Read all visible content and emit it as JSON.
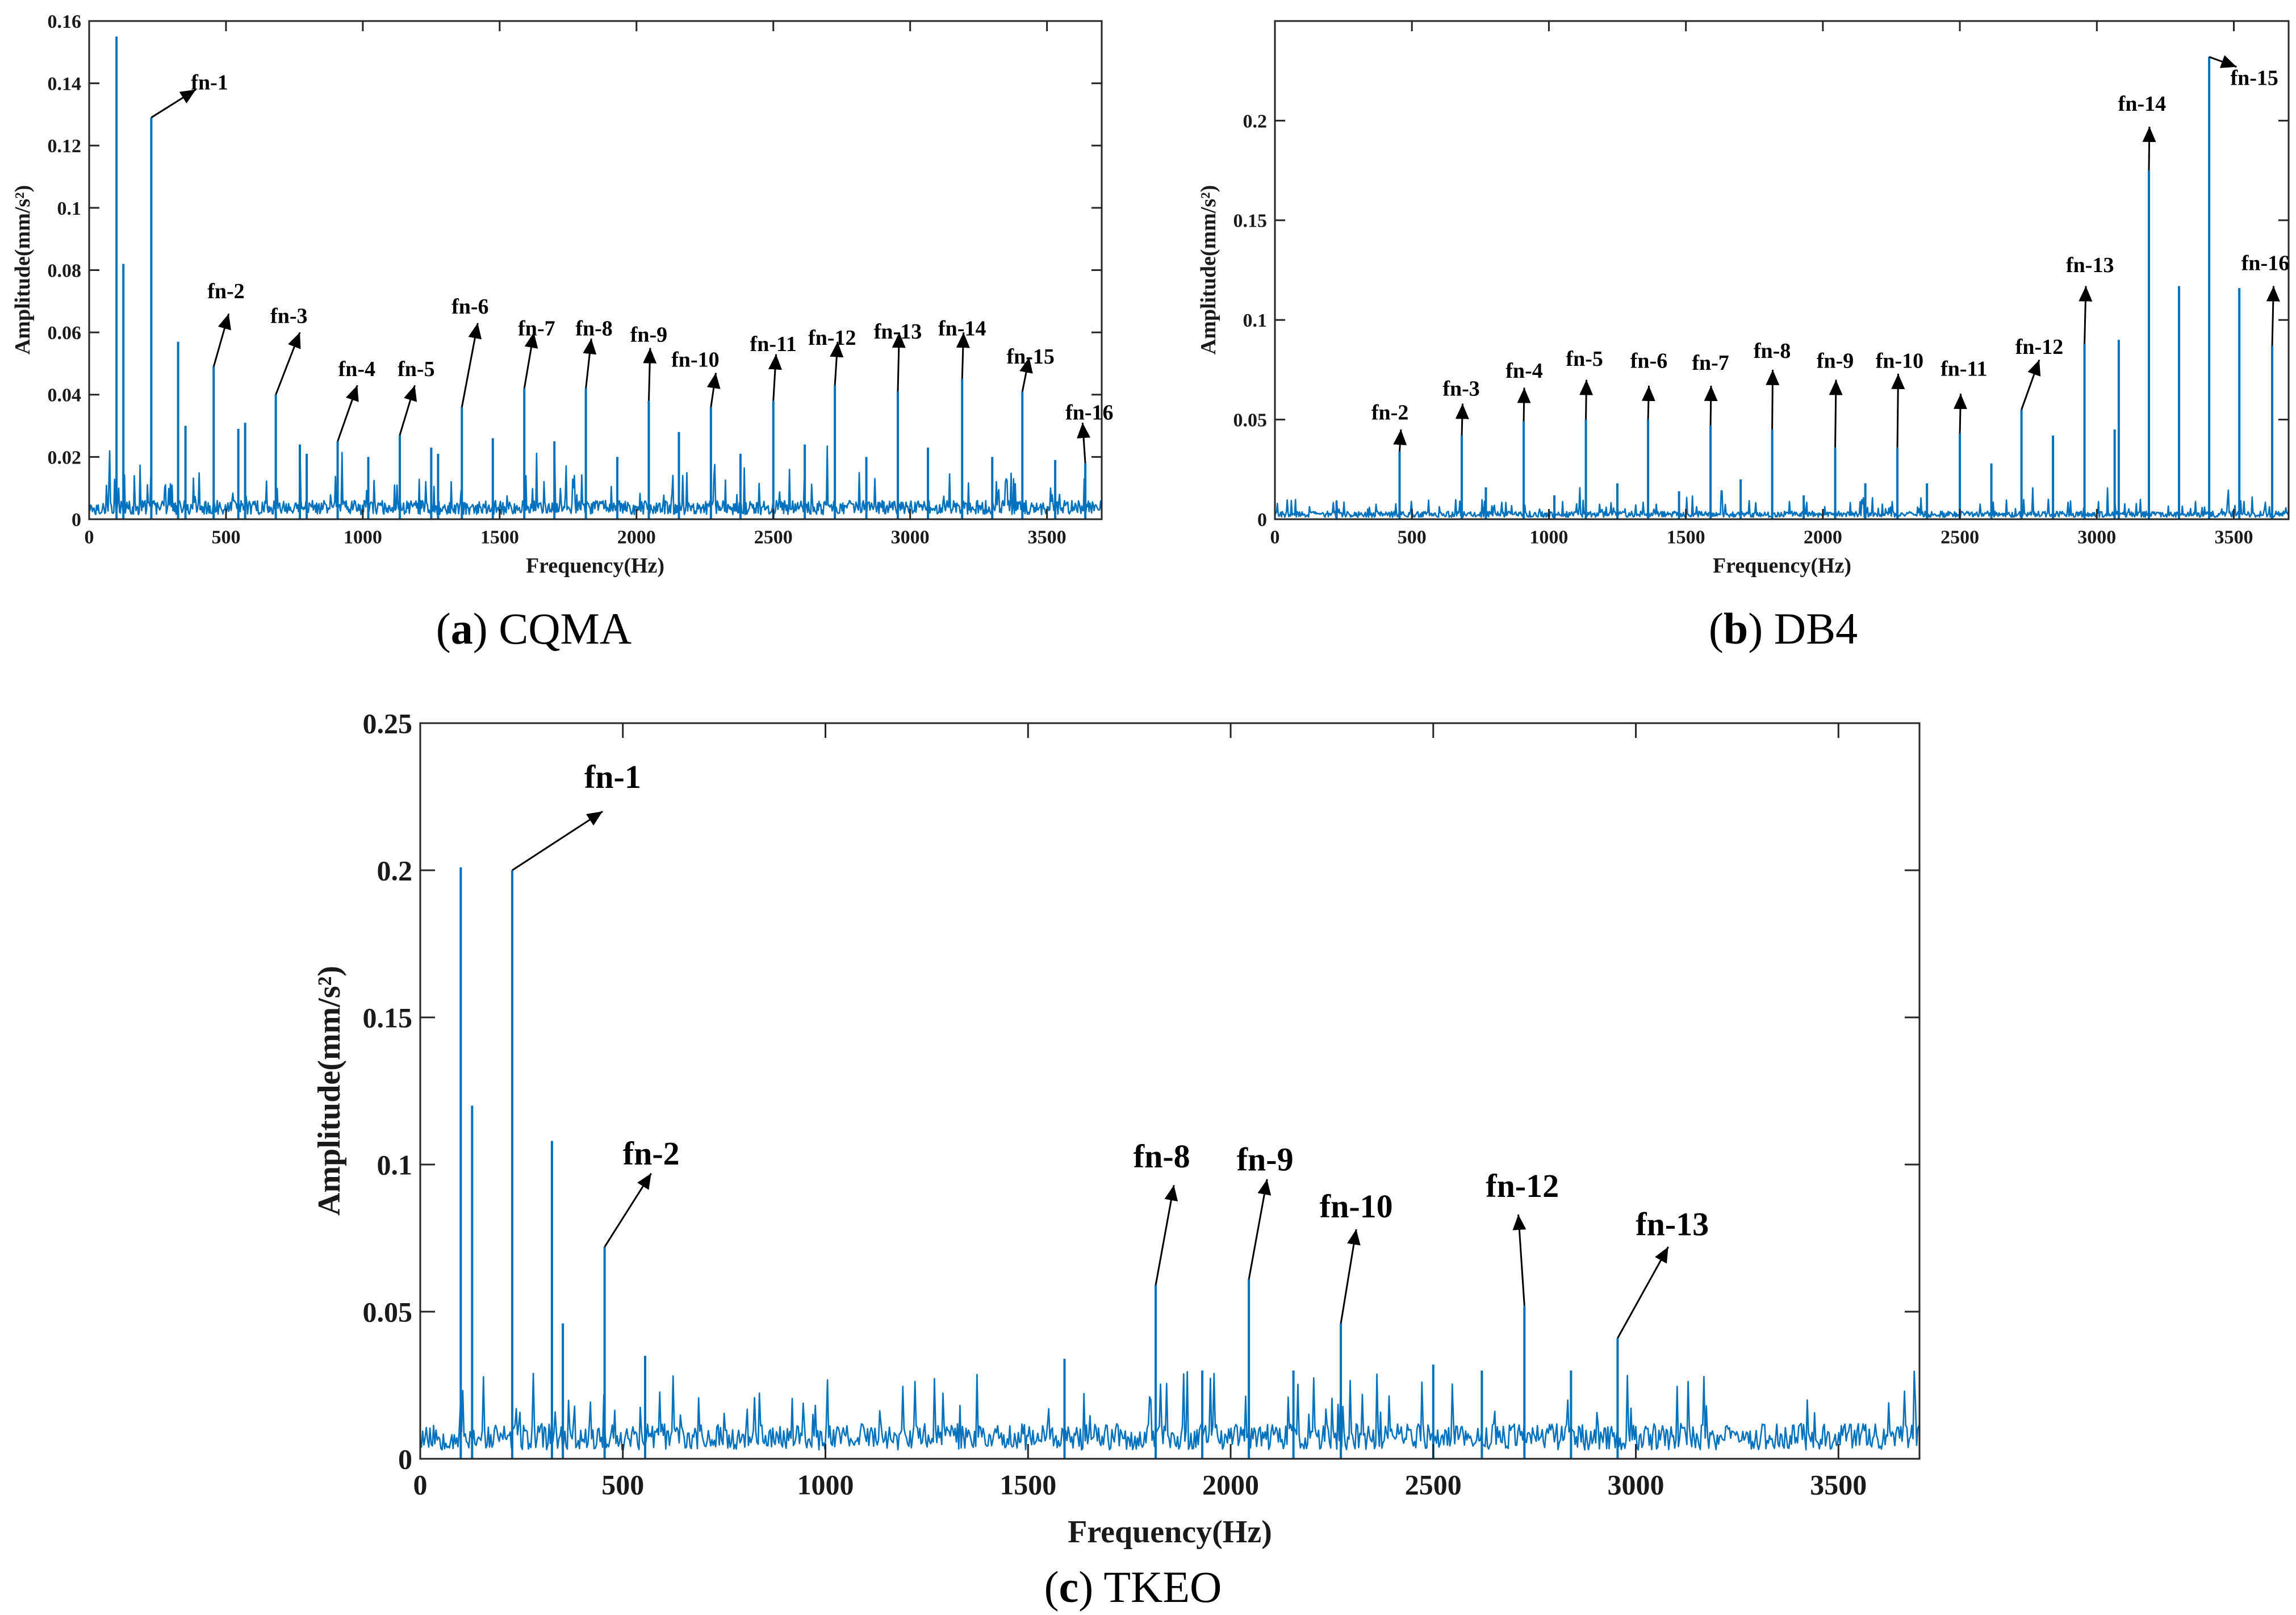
{
  "colors": {
    "series": "#0072bd",
    "axis": "#262626",
    "annotation": "#000000"
  },
  "chart_data": [
    {
      "id": "a",
      "type": "line",
      "caption_letter": "a",
      "caption_name": "CQMA",
      "xlabel": "Frequency(Hz)",
      "ylabel": "Amplitude(mm/s²)",
      "xlim": [
        0,
        3700
      ],
      "ylim": [
        0,
        0.16
      ],
      "xticks": [
        0,
        500,
        1000,
        1500,
        2000,
        2500,
        3000,
        3500
      ],
      "yticks": [
        0,
        0.02,
        0.04,
        0.06,
        0.08,
        0.1,
        0.12,
        0.14,
        0.16
      ],
      "noise": 0.006,
      "peaks": [
        [
          100,
          0.155
        ],
        [
          125,
          0.082
        ],
        [
          227,
          0.129
        ],
        [
          325,
          0.057
        ],
        [
          352,
          0.03
        ],
        [
          455,
          0.049
        ],
        [
          545,
          0.029
        ],
        [
          570,
          0.031
        ],
        [
          682,
          0.04
        ],
        [
          770,
          0.024
        ],
        [
          795,
          0.021
        ],
        [
          908,
          0.025
        ],
        [
          1020,
          0.02
        ],
        [
          1135,
          0.027
        ],
        [
          1250,
          0.023
        ],
        [
          1275,
          0.021
        ],
        [
          1362,
          0.036
        ],
        [
          1475,
          0.026
        ],
        [
          1590,
          0.042
        ],
        [
          1700,
          0.025
        ],
        [
          1815,
          0.042
        ],
        [
          1930,
          0.02
        ],
        [
          2045,
          0.038
        ],
        [
          2155,
          0.028
        ],
        [
          2272,
          0.036
        ],
        [
          2380,
          0.021
        ],
        [
          2500,
          0.038
        ],
        [
          2615,
          0.024
        ],
        [
          2725,
          0.043
        ],
        [
          2840,
          0.02
        ],
        [
          2955,
          0.041
        ],
        [
          3065,
          0.023
        ],
        [
          3190,
          0.045
        ],
        [
          3300,
          0.02
        ],
        [
          3410,
          0.041
        ],
        [
          3530,
          0.019
        ],
        [
          3640,
          0.018
        ]
      ],
      "annotations": [
        {
          "label": "fn-1",
          "x": 227,
          "y": 0.129,
          "tx": 390,
          "ty": 0.138,
          "labx": 440,
          "laby": 0.138
        },
        {
          "label": "fn-2",
          "x": 455,
          "y": 0.049,
          "tx": 510,
          "ty": 0.066,
          "labx": 500,
          "laby": 0.071
        },
        {
          "label": "fn-3",
          "x": 682,
          "y": 0.04,
          "tx": 770,
          "ty": 0.06,
          "labx": 730,
          "laby": 0.063
        },
        {
          "label": "fn-4",
          "x": 908,
          "y": 0.025,
          "tx": 980,
          "ty": 0.043,
          "labx": 978,
          "laby": 0.046
        },
        {
          "label": "fn-5",
          "x": 1135,
          "y": 0.027,
          "tx": 1190,
          "ty": 0.043,
          "labx": 1195,
          "laby": 0.046
        },
        {
          "label": "fn-6",
          "x": 1362,
          "y": 0.036,
          "tx": 1420,
          "ty": 0.063,
          "labx": 1392,
          "laby": 0.066
        },
        {
          "label": "fn-7",
          "x": 1590,
          "y": 0.042,
          "tx": 1625,
          "ty": 0.06,
          "labx": 1635,
          "laby": 0.059
        },
        {
          "label": "fn-8",
          "x": 1815,
          "y": 0.042,
          "tx": 1835,
          "ty": 0.058,
          "labx": 1845,
          "laby": 0.059
        },
        {
          "label": "fn-9",
          "x": 2045,
          "y": 0.038,
          "tx": 2050,
          "ty": 0.055,
          "labx": 2045,
          "laby": 0.057
        },
        {
          "label": "fn-10",
          "x": 2272,
          "y": 0.036,
          "tx": 2290,
          "ty": 0.047,
          "labx": 2215,
          "laby": 0.049
        },
        {
          "label": "fn-11",
          "x": 2500,
          "y": 0.038,
          "tx": 2510,
          "ty": 0.053,
          "labx": 2500,
          "laby": 0.054
        },
        {
          "label": "fn-12",
          "x": 2725,
          "y": 0.043,
          "tx": 2735,
          "ty": 0.057,
          "labx": 2715,
          "laby": 0.056
        },
        {
          "label": "fn-13",
          "x": 2955,
          "y": 0.041,
          "tx": 2960,
          "ty": 0.06,
          "labx": 2955,
          "laby": 0.058
        },
        {
          "label": "fn-14",
          "x": 3190,
          "y": 0.045,
          "tx": 3195,
          "ty": 0.06,
          "labx": 3190,
          "laby": 0.059
        },
        {
          "label": "fn-15",
          "x": 3410,
          "y": 0.041,
          "tx": 3435,
          "ty": 0.052,
          "labx": 3440,
          "laby": 0.05
        },
        {
          "label": "fn-16",
          "x": 3640,
          "y": 0.018,
          "tx": 3630,
          "ty": 0.031,
          "labx": 3655,
          "laby": 0.032
        }
      ]
    },
    {
      "id": "b",
      "type": "line",
      "caption_letter": "b",
      "caption_name": "DB4",
      "xlabel": "Frequency(Hz)",
      "ylabel": "Amplitude(mm/s²)",
      "xlim": [
        0,
        3700
      ],
      "ylim": [
        0,
        0.25
      ],
      "xticks": [
        0,
        500,
        1000,
        1500,
        2000,
        2500,
        3000,
        3500
      ],
      "yticks": [
        0,
        0.05,
        0.1,
        0.15,
        0.2
      ],
      "noise": 0.004,
      "peaks": [
        [
          225,
          0.009
        ],
        [
          455,
          0.034
        ],
        [
          682,
          0.042
        ],
        [
          770,
          0.016
        ],
        [
          908,
          0.049
        ],
        [
          1020,
          0.012
        ],
        [
          1135,
          0.05
        ],
        [
          1250,
          0.018
        ],
        [
          1362,
          0.05
        ],
        [
          1475,
          0.014
        ],
        [
          1590,
          0.047
        ],
        [
          1700,
          0.02
        ],
        [
          1815,
          0.045
        ],
        [
          1930,
          0.012
        ],
        [
          2045,
          0.036
        ],
        [
          2155,
          0.018
        ],
        [
          2272,
          0.036
        ],
        [
          2380,
          0.018
        ],
        [
          2500,
          0.043
        ],
        [
          2615,
          0.028
        ],
        [
          2725,
          0.055
        ],
        [
          2840,
          0.042
        ],
        [
          2955,
          0.088
        ],
        [
          3065,
          0.045
        ],
        [
          3080,
          0.09
        ],
        [
          3190,
          0.175
        ],
        [
          3300,
          0.117
        ],
        [
          3410,
          0.232
        ],
        [
          3520,
          0.116
        ],
        [
          3640,
          0.087
        ]
      ],
      "annotations": [
        {
          "label": "fn-2",
          "x": 455,
          "y": 0.034,
          "tx": 460,
          "ty": 0.045,
          "labx": 420,
          "laby": 0.05
        },
        {
          "label": "fn-3",
          "x": 682,
          "y": 0.042,
          "tx": 685,
          "ty": 0.058,
          "labx": 680,
          "laby": 0.062
        },
        {
          "label": "fn-4",
          "x": 908,
          "y": 0.049,
          "tx": 910,
          "ty": 0.066,
          "labx": 910,
          "laby": 0.071
        },
        {
          "label": "fn-5",
          "x": 1135,
          "y": 0.05,
          "tx": 1137,
          "ty": 0.07,
          "labx": 1130,
          "laby": 0.077
        },
        {
          "label": "fn-6",
          "x": 1362,
          "y": 0.05,
          "tx": 1365,
          "ty": 0.067,
          "labx": 1365,
          "laby": 0.076
        },
        {
          "label": "fn-7",
          "x": 1590,
          "y": 0.047,
          "tx": 1592,
          "ty": 0.067,
          "labx": 1590,
          "laby": 0.075
        },
        {
          "label": "fn-8",
          "x": 1815,
          "y": 0.045,
          "tx": 1817,
          "ty": 0.075,
          "labx": 1815,
          "laby": 0.081
        },
        {
          "label": "fn-9",
          "x": 2045,
          "y": 0.036,
          "tx": 2048,
          "ty": 0.07,
          "labx": 2045,
          "laby": 0.076
        },
        {
          "label": "fn-10",
          "x": 2272,
          "y": 0.036,
          "tx": 2275,
          "ty": 0.073,
          "labx": 2280,
          "laby": 0.076
        },
        {
          "label": "fn-11",
          "x": 2500,
          "y": 0.043,
          "tx": 2503,
          "ty": 0.063,
          "labx": 2515,
          "laby": 0.072
        },
        {
          "label": "fn-12",
          "x": 2725,
          "y": 0.055,
          "tx": 2790,
          "ty": 0.08,
          "labx": 2790,
          "laby": 0.083
        },
        {
          "label": "fn-13",
          "x": 2955,
          "y": 0.088,
          "tx": 2960,
          "ty": 0.117,
          "labx": 2975,
          "laby": 0.124
        },
        {
          "label": "fn-14",
          "x": 3190,
          "y": 0.175,
          "tx": 3192,
          "ty": 0.197,
          "labx": 3165,
          "laby": 0.205
        },
        {
          "label": "fn-15",
          "x": 3410,
          "y": 0.232,
          "tx": 3510,
          "ty": 0.227,
          "labx": 3575,
          "laby": 0.218
        },
        {
          "label": "fn-16",
          "x": 3640,
          "y": 0.087,
          "tx": 3645,
          "ty": 0.117,
          "labx": 3615,
          "laby": 0.125
        }
      ]
    },
    {
      "id": "c",
      "type": "line",
      "caption_letter": "c",
      "caption_name": "TKEO",
      "xlabel": "Frequency(Hz)",
      "ylabel": "Amplitude(mm/s²)",
      "xlim": [
        0,
        3700
      ],
      "ylim": [
        0,
        0.25
      ],
      "xticks": [
        0,
        500,
        1000,
        1500,
        2000,
        2500,
        3000,
        3500
      ],
      "yticks": [
        0,
        0.05,
        0.1,
        0.15,
        0.2,
        0.25
      ],
      "noise": 0.012,
      "peaks": [
        [
          100,
          0.201
        ],
        [
          128,
          0.12
        ],
        [
          227,
          0.2
        ],
        [
          325,
          0.108
        ],
        [
          352,
          0.046
        ],
        [
          455,
          0.072
        ],
        [
          555,
          0.035
        ],
        [
          1590,
          0.034
        ],
        [
          1815,
          0.059
        ],
        [
          1930,
          0.03
        ],
        [
          2045,
          0.061
        ],
        [
          2155,
          0.03
        ],
        [
          2272,
          0.046
        ],
        [
          2500,
          0.032
        ],
        [
          2620,
          0.03
        ],
        [
          2725,
          0.052
        ],
        [
          2840,
          0.03
        ],
        [
          2955,
          0.041
        ]
      ],
      "annotations": [
        {
          "label": "fn-1",
          "x": 227,
          "y": 0.2,
          "tx": 450,
          "ty": 0.22,
          "labx": 475,
          "laby": 0.228
        },
        {
          "label": "fn-2",
          "x": 455,
          "y": 0.072,
          "tx": 570,
          "ty": 0.097,
          "labx": 570,
          "laby": 0.1
        },
        {
          "label": "fn-8",
          "x": 1815,
          "y": 0.059,
          "tx": 1860,
          "ty": 0.093,
          "labx": 1830,
          "laby": 0.099
        },
        {
          "label": "fn-9",
          "x": 2045,
          "y": 0.061,
          "tx": 2090,
          "ty": 0.095,
          "labx": 2085,
          "laby": 0.098
        },
        {
          "label": "fn-10",
          "x": 2272,
          "y": 0.046,
          "tx": 2310,
          "ty": 0.078,
          "labx": 2310,
          "laby": 0.082
        },
        {
          "label": "fn-12",
          "x": 2725,
          "y": 0.052,
          "tx": 2710,
          "ty": 0.083,
          "labx": 2720,
          "laby": 0.089
        },
        {
          "label": "fn-13",
          "x": 2955,
          "y": 0.041,
          "tx": 3080,
          "ty": 0.072,
          "labx": 3090,
          "laby": 0.076
        }
      ]
    }
  ]
}
